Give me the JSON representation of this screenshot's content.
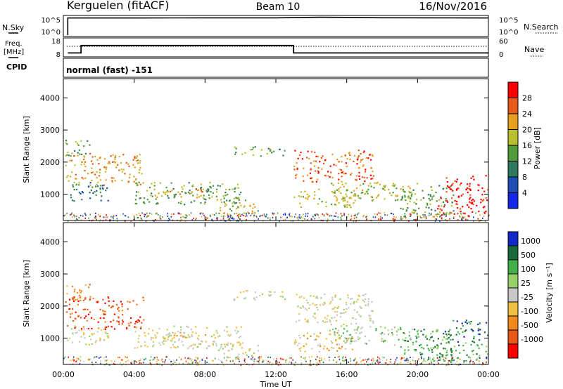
{
  "header": {
    "station": "Kerguelen (fitACF)",
    "beam": "Beam 10",
    "date": "16/Nov/2016"
  },
  "nsky_panel": {
    "left_label": "N.Sky",
    "right_label": "N.Search",
    "left_ticks": [
      "10^5",
      "10^0"
    ],
    "right_ticks": [
      "10^5",
      "10^0"
    ]
  },
  "freq_panel": {
    "left_label_1": "Freq.",
    "left_label_2": "[MHz]",
    "right_label": "Nave",
    "left_ticks": [
      "18",
      "8"
    ],
    "right_ticks": [
      "60",
      "0"
    ]
  },
  "cpid": {
    "label": "CPID",
    "value": "normal (fast) -151"
  },
  "x_axis": {
    "label": "Time UT",
    "ticks": [
      "00:00",
      "04:00",
      "08:00",
      "12:00",
      "16:00",
      "20:00",
      "00:00"
    ]
  },
  "power_panel": {
    "ylabel": "Slant Range [km]",
    "yticks": [
      "1000",
      "2000",
      "3000",
      "4000"
    ],
    "colorbar_label": "Power [dB]",
    "colorbar_ticks": [
      "4",
      "8",
      "12",
      "16",
      "20",
      "24",
      "28"
    ]
  },
  "velocity_panel": {
    "ylabel": "Slant Range [km]",
    "yticks": [
      "1000",
      "2000",
      "3000",
      "4000"
    ],
    "colorbar_label": "Velocity [m s⁻¹]",
    "colorbar_ticks": [
      "1000",
      "500",
      "100",
      "25",
      "-25",
      "-100",
      "-500",
      "-1000"
    ]
  },
  "chart_data": {
    "type": "heatmap",
    "x_range_hours_ut": [
      0,
      24
    ],
    "y_range_km": [
      180,
      4600
    ],
    "power_colors": [
      "#1528e8",
      "#1f4fb5",
      "#2f7a5e",
      "#4f9a3a",
      "#b8c032",
      "#e8a020",
      "#e85a18",
      "#ff0000"
    ],
    "power_levels_db": [
      4,
      8,
      12,
      16,
      20,
      24,
      28
    ],
    "velocity_colors": [
      "#1328c8",
      "#1c6a3a",
      "#43b04a",
      "#98d06a",
      "#c8c8c8",
      "#f0c040",
      "#f08a1e",
      "#e85818",
      "#ff0000"
    ],
    "velocity_levels_ms": [
      1000,
      500,
      100,
      25,
      -25,
      -100,
      -500,
      -1000
    ],
    "nsky_log10": [
      4.7,
      4.7,
      4.72,
      4.72,
      4.8,
      4.9,
      4.85,
      4.75,
      4.72,
      4.7
    ],
    "nsky_times": [
      0.25,
      4,
      8,
      12,
      13,
      14.5,
      16,
      18,
      21,
      24
    ],
    "freq_mhz": [
      [
        0.25,
        9.2
      ],
      [
        1.0,
        9.2
      ],
      [
        1.0,
        14.0
      ],
      [
        13.0,
        14.0
      ],
      [
        13.0,
        9.2
      ],
      [
        24.0,
        9.2
      ]
    ],
    "nave_dotted_level": 30,
    "scatter_regions": [
      {
        "t0": 0.1,
        "t1": 4.5,
        "r0": 1300,
        "r1": 2300,
        "power": 5,
        "velocity": 7
      },
      {
        "t0": 0.1,
        "t1": 1.5,
        "r0": 2200,
        "r1": 2700,
        "power": 3,
        "velocity": 6
      },
      {
        "t0": 0.1,
        "t1": 2.5,
        "r0": 800,
        "r1": 1400,
        "power": 2,
        "velocity": 4
      },
      {
        "t0": 4.0,
        "t1": 10.0,
        "r0": 700,
        "r1": 1400,
        "power": 3,
        "velocity": 4
      },
      {
        "t0": 5.0,
        "t1": 8.0,
        "r0": 900,
        "r1": 1200,
        "power": 5,
        "velocity": 5
      },
      {
        "t0": 9.6,
        "t1": 12.5,
        "r0": 2200,
        "r1": 2500,
        "power": 3,
        "velocity": 4
      },
      {
        "t0": 8.5,
        "t1": 11.0,
        "r0": 400,
        "r1": 900,
        "power": 4,
        "velocity": 4
      },
      {
        "t0": 13.0,
        "t1": 17.5,
        "r0": 1400,
        "r1": 2400,
        "power": 6,
        "velocity": 4
      },
      {
        "t0": 13.0,
        "t1": 16.5,
        "r0": 600,
        "r1": 1200,
        "power": 4,
        "velocity": 5
      },
      {
        "t0": 15.0,
        "t1": 20.0,
        "r0": 800,
        "r1": 1400,
        "power": 4,
        "velocity": 3
      },
      {
        "t0": 19.0,
        "t1": 22.0,
        "r0": 300,
        "r1": 1300,
        "power": 3,
        "velocity": 2
      },
      {
        "t0": 21.0,
        "t1": 24.0,
        "r0": 300,
        "r1": 900,
        "power": 7,
        "velocity": 2
      },
      {
        "t0": 21.5,
        "t1": 24.0,
        "r0": 900,
        "r1": 1600,
        "power": 7,
        "velocity": 1
      }
    ]
  }
}
